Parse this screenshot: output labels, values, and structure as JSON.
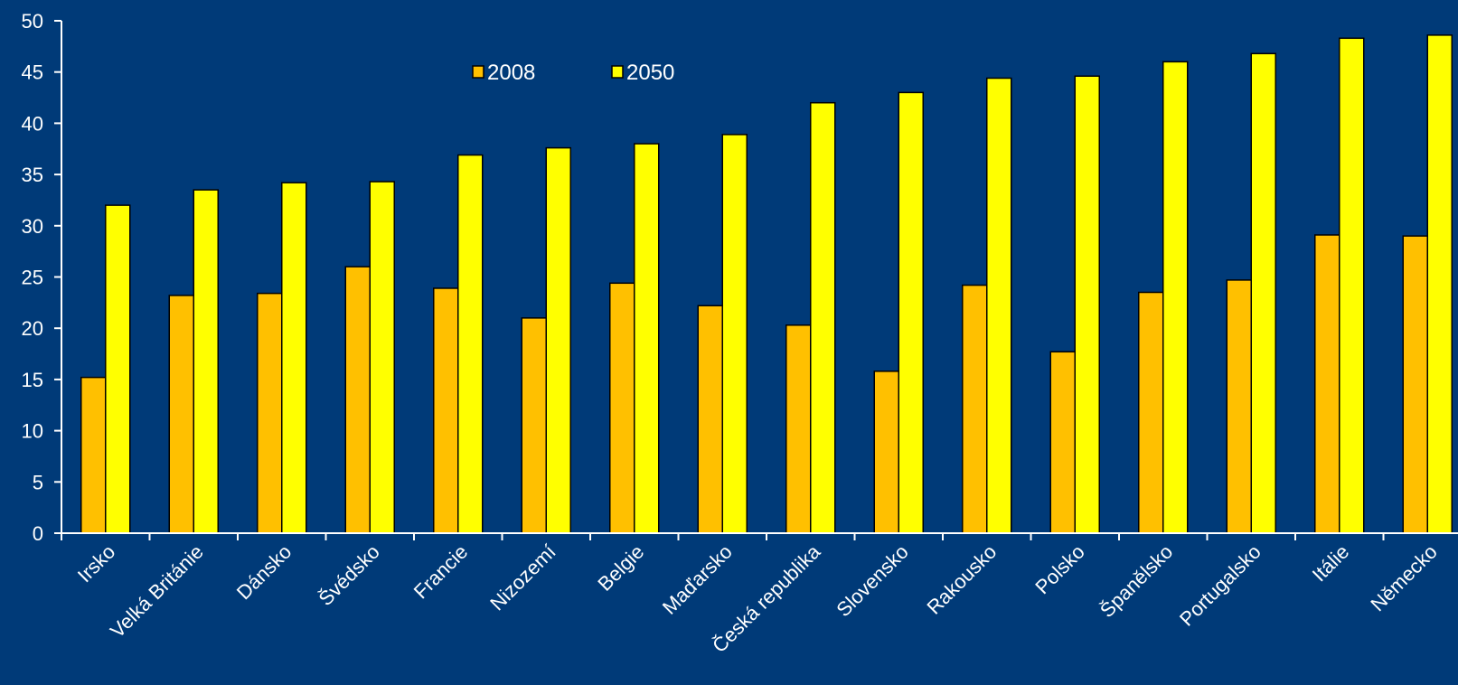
{
  "chart_data": {
    "type": "bar",
    "categories": [
      "Irsko",
      "Velká Británie",
      "Dánsko",
      "Švédsko",
      "Francie",
      "Nizozemí",
      "Belgie",
      "Maďarsko",
      "Česká republika",
      "Slovensko",
      "Rakousko",
      "Polsko",
      "Španělsko",
      "Portugalsko",
      "Itálie",
      "Německo"
    ],
    "series": [
      {
        "name": "2008",
        "color": "#FFC000",
        "values": [
          15.2,
          23.2,
          23.4,
          26.0,
          23.9,
          21.0,
          24.4,
          22.2,
          20.3,
          15.8,
          24.2,
          17.7,
          23.5,
          24.7,
          29.1,
          29.0
        ]
      },
      {
        "name": "2050",
        "color": "#FFFF00",
        "values": [
          32.0,
          33.5,
          34.2,
          34.3,
          36.9,
          37.6,
          38.0,
          38.9,
          42.0,
          43.0,
          44.4,
          44.6,
          46.0,
          46.8,
          48.3,
          48.6
        ]
      }
    ],
    "ylim": [
      0,
      50
    ],
    "yticks": [
      0,
      5,
      10,
      15,
      20,
      25,
      30,
      35,
      40,
      45,
      50
    ],
    "legend_position": "top-center",
    "grid": false,
    "title": "",
    "xlabel": "",
    "ylabel": ""
  }
}
